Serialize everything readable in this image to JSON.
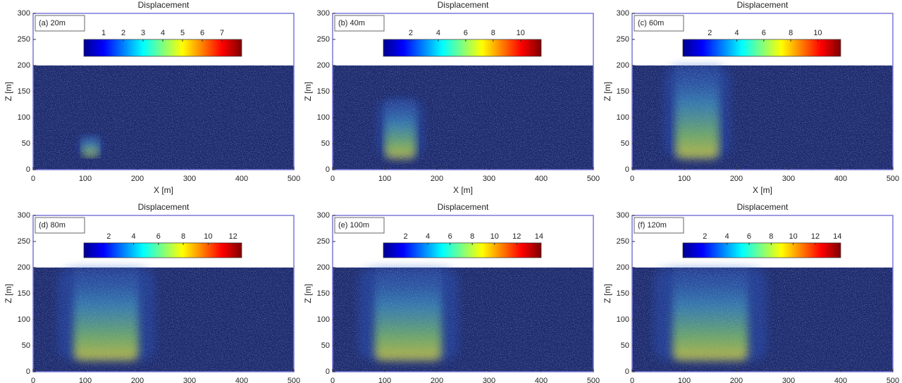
{
  "chart_data": [
    {
      "type": "image",
      "title": "Displacement",
      "label": "(a) 20m",
      "xlabel": "X [m]",
      "ylabel": "Z [m]",
      "xlim": [
        0,
        500
      ],
      "ylim": [
        0,
        300
      ],
      "xticks": [
        0,
        100,
        200,
        300,
        400,
        500
      ],
      "yticks": [
        0,
        50,
        100,
        150,
        200,
        250,
        300
      ],
      "colormap": "jet",
      "clim": [
        0,
        8
      ],
      "cticks": [
        1,
        2,
        3,
        4,
        5,
        6,
        7
      ]
    },
    {
      "type": "image",
      "title": "Displacement",
      "label": "(b) 40m",
      "xlabel": "X [m]",
      "ylabel": "Z [m]",
      "xlim": [
        0,
        500
      ],
      "ylim": [
        0,
        300
      ],
      "xticks": [
        0,
        100,
        200,
        300,
        400,
        500
      ],
      "yticks": [
        0,
        50,
        100,
        150,
        200,
        250,
        300
      ],
      "colormap": "jet",
      "clim": [
        0,
        11.5
      ],
      "cticks": [
        2,
        4,
        6,
        8,
        10
      ]
    },
    {
      "type": "image",
      "title": "Displacement",
      "label": "(c) 60m",
      "xlabel": "X [m]",
      "ylabel": "Z [m]",
      "xlim": [
        0,
        500
      ],
      "ylim": [
        0,
        300
      ],
      "xticks": [
        0,
        100,
        200,
        300,
        400,
        500
      ],
      "yticks": [
        0,
        50,
        100,
        150,
        200,
        250,
        300
      ],
      "colormap": "jet",
      "clim": [
        0,
        11.7
      ],
      "cticks": [
        2,
        4,
        6,
        8,
        10
      ]
    },
    {
      "type": "image",
      "title": "Displacement",
      "label": "(d) 80m",
      "ylabel": "Z [m]",
      "xlim": [
        0,
        500
      ],
      "ylim": [
        0,
        300
      ],
      "xticks": [
        0,
        100,
        200,
        300,
        400,
        500
      ],
      "yticks": [
        0,
        50,
        100,
        150,
        200,
        250,
        300
      ],
      "colormap": "jet",
      "clim": [
        0,
        12.7
      ],
      "cticks": [
        2,
        4,
        6,
        8,
        10,
        12
      ]
    },
    {
      "type": "image",
      "title": "Displacement",
      "label": "(e) 100m",
      "ylabel": "Z [m]",
      "xlim": [
        0,
        500
      ],
      "ylim": [
        0,
        300
      ],
      "xticks": [
        0,
        100,
        200,
        300,
        400,
        500
      ],
      "yticks": [
        0,
        50,
        100,
        150,
        200,
        250,
        300
      ],
      "colormap": "jet",
      "clim": [
        0,
        14.2
      ],
      "cticks": [
        2,
        4,
        6,
        8,
        10,
        12,
        14
      ]
    },
    {
      "type": "image",
      "title": "Displacement",
      "label": "(f) 120m",
      "ylabel": "Z [m]",
      "xlim": [
        0,
        500
      ],
      "ylim": [
        0,
        300
      ],
      "xticks": [
        0,
        100,
        200,
        300,
        400,
        500
      ],
      "yticks": [
        0,
        50,
        100,
        150,
        200,
        250,
        300
      ],
      "colormap": "jet",
      "clim": [
        0,
        14.3
      ],
      "cticks": [
        2,
        4,
        6,
        8,
        10,
        12,
        14
      ]
    }
  ]
}
